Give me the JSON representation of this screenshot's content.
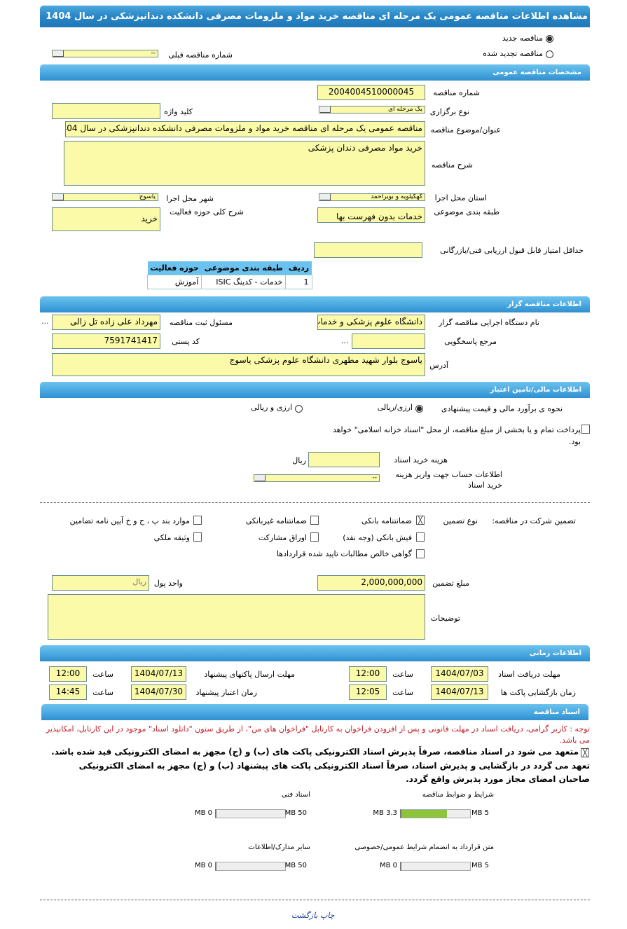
{
  "title": "مشاهده اطلاعات مناقصه عمومی یک مرحله ای مناقصه خرید مواد و ملزومات مصرفی دانشکده دندانپزشکی در سال 1404",
  "tender_type": {
    "new": "مناقصه جدید",
    "renewed": "مناقصه تجدید شده",
    "selected": "new",
    "prev_number_label": "شماره مناقصه قبلی",
    "prev_number_value": "--"
  },
  "general": {
    "header": "مشخصات مناقصه عمومی",
    "number_label": "شماره مناقصه",
    "number": "2004004510000045",
    "keyword_label": "کلید واژه",
    "keyword": "",
    "holding_type_label": "نوع برگزاری",
    "holding_type": "یک مرحله ای",
    "subject_label": "عنوان/موضوع مناقصه",
    "subject": "مناقصه عمومی یک مرحله ای مناقصه  خرید مواد و ملزومات مصرفی دانشکده  دندانپزشکی در سال 1404",
    "description_label": "شرح مناقصه",
    "description": "خرید مواد مصرفی دندان پزشکی",
    "city_label": "شهر محل اجرا",
    "city": "یاسوج",
    "province_label": "استان محل اجرا",
    "province": "کهگیلویه و بویراحمد",
    "activity_label": "شرح کلی حوزه فعالیت",
    "activity": "خرید",
    "classification_label": "طبقه بندی موضوعی",
    "classification": "خدمات بدون فهرست بها",
    "min_score_label": "حداقل امتیاز قابل قبول ارزیابی فنی/بازرگانی",
    "min_score": "",
    "table": {
      "headers": [
        "ردیف",
        "طبقه بندی موضوعی",
        "حوزه فعالیت"
      ],
      "rows": [
        [
          "1",
          "خدمات - کدینگ ISIC",
          "آموزش"
        ]
      ]
    }
  },
  "organizer": {
    "header": "اطلاعات مناقصه گزار",
    "org_label": "نام دستگاه اجرایی مناقصه گزار",
    "org": "دانشگاه علوم پزشکی و خدمات",
    "responsible_label": "مسئول ثبت مناقصه",
    "responsible": "مهرداد علی زاده تل زالی",
    "more": "...",
    "reference_label": "مرجع پاسخگویی",
    "reference": "",
    "postal_label": "کد پستی",
    "postal": "7591741417",
    "address_label": "آدرس",
    "address": "یاسوج بلوار شهید مطهری دانشگاه علوم پزشکی یاسوج"
  },
  "finance": {
    "header": "اطلاعات مالی/تامین اعتبار",
    "estimate_label": "نحوه ی برآورد مالی و قیمت پیشنهادی",
    "opt1": "ارزی/ریالی",
    "opt2": "ارزی و ریالی",
    "treasury_text": "پرداخت تمام و یا بخشی از مبلغ مناقصه، از محل \"اسناد خزانه اسلامی\" خواهد بود.",
    "doc_cost_label": "هزینه خرید اسناد",
    "doc_cost": "",
    "rial": "ریال",
    "account_label": "اطلاعات حساب جهت واریز هزینه خرید اسناد",
    "account": "--"
  },
  "guarantee": {
    "label": "تضمین شرکت در مناقصه:",
    "type_label": "نوع تضمین",
    "options": [
      {
        "label": "ضمانتنامه بانکی",
        "checked": true
      },
      {
        "label": "ضمانتنامه غیربانکی",
        "checked": false
      },
      {
        "label": "موارد بند پ ، ح و خ آیین نامه تضامین",
        "checked": false
      },
      {
        "label": "فیش بانکی (وجه نقد)",
        "checked": false
      },
      {
        "label": "اوراق مشارکت",
        "checked": false
      },
      {
        "label": "وثیقه ملکی",
        "checked": false
      },
      {
        "label": "گواهی خالص مطالبات تایید شده قراردادها",
        "checked": false
      }
    ],
    "amount_label": "مبلغ تضمین",
    "amount": "2,000,000,000",
    "unit_label": "واحد پول",
    "unit": "ریال",
    "notes_label": "توضیحات",
    "notes": ""
  },
  "timing": {
    "header": "اطلاعات زمانی",
    "time_label": "ساعت",
    "doc_receive_label": "مهلت دریافت اسناد",
    "doc_receive_date": "1404/07/03",
    "doc_receive_time": "12:00",
    "send_label": "مهلت ارسال پاکتهای پیشنهاد",
    "send_date": "1404/07/13",
    "send_time": "12:00",
    "open_label": "زمان بازگشایی پاکت ها",
    "open_date": "1404/07/13",
    "open_time": "12:05",
    "validity_label": "زمان اعتبار پیشنهاد",
    "validity_date": "1404/07/30",
    "validity_time": "14:45"
  },
  "documents": {
    "header": "اسناد مناقصه",
    "notice": "توجه : کاربر گرامی، دریافت اسناد در مهلت قانونی و پس از افزودن فراخوان به کارتابل \"فراخوان های من\"، از طریق ستون \"دانلود اسناد\" موجود در این کارتابل، امکانپذیر می باشد.",
    "commit1": "متعهد می شود در اسناد مناقصه، صرفاً پذیرش اسناد الکترونیکی پاکت های (ب) و (ج) مجهز به امضای الکترونیکی قید شده باشد.",
    "commit2": "تعهد می گردد در بازگشایی و پذیرش اسناد، صرفاً اسناد الکترونیکی پاکت های پیشنهاد (ب) و (ج) مجهز به امضای الکترونیکی صاحبان امضای مجاز مورد پذیرش واقع گردد.",
    "files": [
      {
        "label": "شرایط و ضوابط مناقصه",
        "used": "3.3 MB",
        "max": "5 MB",
        "fraction": 0.66
      },
      {
        "label": "اسناد فنی",
        "used": "0 MB",
        "max": "50 MB",
        "fraction": 0
      },
      {
        "label": "متن قرارداد به انضمام شرایط عمومی/خصوصی",
        "used": "0 MB",
        "max": "5 MB",
        "fraction": 0
      },
      {
        "label": "سایر مدارک/اطلاعات",
        "used": "0 MB",
        "max": "50 MB",
        "fraction": 0
      }
    ],
    "fill_color": "#8cc43c"
  },
  "footer": {
    "print": "چاپ",
    "back": "بازگشت"
  }
}
